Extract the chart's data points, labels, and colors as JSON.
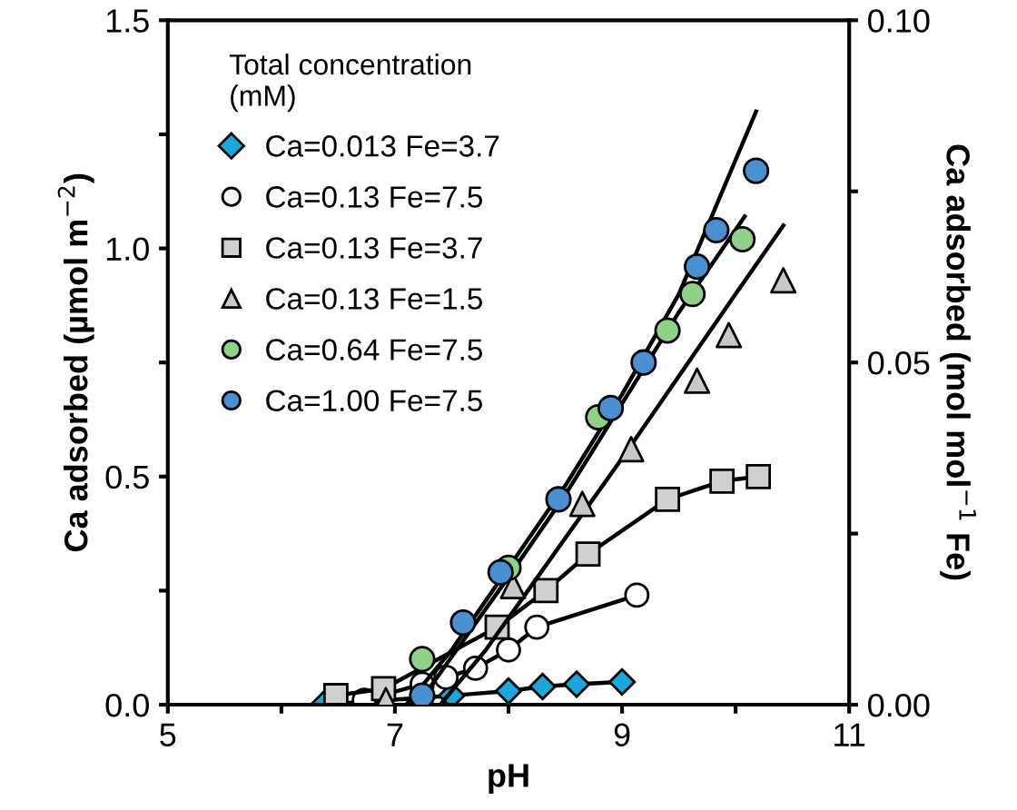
{
  "chart_data": {
    "type": "scatter",
    "xlabel": "pH",
    "ylabel": "Ca adsorbed (µmol m$^{−2}$)",
    "y2label": "Ca adsorbed (mol mol$^{−1}$ Fe)",
    "legend_title": "Total concentration\n(mM)",
    "legend": "top left",
    "grid": false,
    "xlim": [
      5,
      11
    ],
    "xticks": [
      5,
      {
        "value": 6,
        "label": null
      },
      7,
      {
        "value": 8,
        "label": null
      },
      9,
      {
        "value": 10,
        "label": null
      },
      11
    ],
    "ylim": [
      0,
      1.5
    ],
    "yticks": [
      {
        "value": 0,
        "label": "0.0"
      },
      {
        "value": 0.25,
        "label": null
      },
      {
        "value": 0.5,
        "label": "0.5"
      },
      {
        "value": 0.75,
        "label": null
      },
      {
        "value": 1.0,
        "label": "1.0"
      },
      {
        "value": 1.25,
        "label": null
      },
      {
        "value": 1.5,
        "label": "1.5"
      }
    ],
    "y2lim": [
      0,
      0.1
    ],
    "y2ticks": [
      {
        "value": 0,
        "label": "0.00"
      },
      {
        "value": 0.025,
        "label": null
      },
      {
        "value": 0.05,
        "label": "0.05"
      },
      {
        "value": 0.075,
        "label": null
      },
      {
        "value": 0.1,
        "label": "0.10"
      }
    ],
    "series": [
      {
        "name": "Ca=0.013 Fe=3.7",
        "type": "line",
        "marker": "diamond",
        "color": "#1aa7dc",
        "x": [
          6.37,
          7.5,
          8.0,
          8.3,
          8.6,
          9.0
        ],
        "values": [
          0.0,
          0.02,
          0.03,
          0.04,
          0.045,
          0.05
        ]
      },
      {
        "name": "Ca=0.13 Fe=7.5",
        "type": "line",
        "marker": "circle",
        "color": "#ffffff",
        "x": [
          6.73,
          7.24,
          7.45,
          7.71,
          8.0,
          8.25,
          9.13
        ],
        "values": [
          0.01,
          0.045,
          0.06,
          0.08,
          0.12,
          0.17,
          0.24
        ]
      },
      {
        "name": "Ca=0.13 Fe=3.7",
        "type": "line",
        "marker": "square",
        "color": "#d0d0d0",
        "x": [
          6.48,
          6.9,
          7.9,
          8.33,
          8.7,
          9.4,
          9.88,
          10.2
        ],
        "values": [
          0.02,
          0.035,
          0.17,
          0.25,
          0.33,
          0.45,
          0.49,
          0.5
        ]
      },
      {
        "name": "Ca=0.13 Fe=1.5",
        "marker": "triangle",
        "color": "#c8c8c8",
        "x": [
          6.92,
          8.04,
          8.65,
          9.08,
          9.66,
          9.94,
          10.42
        ],
        "values": [
          0.01,
          0.26,
          0.44,
          0.56,
          0.71,
          0.81,
          0.93
        ]
      },
      {
        "name": "Ca=0.64 Fe=7.5",
        "marker": "circle",
        "color": "#90d18a",
        "x": [
          7.24,
          8.0,
          8.79,
          9.4,
          9.62,
          10.06
        ],
        "values": [
          0.1,
          0.3,
          0.63,
          0.82,
          0.9,
          1.02
        ]
      },
      {
        "name": "Ca=1.00 Fe=7.5",
        "marker": "circle",
        "color": "#4a90d0",
        "x": [
          7.24,
          7.6,
          7.93,
          8.44,
          8.9,
          9.19,
          9.66,
          9.83,
          10.18
        ],
        "values": [
          0.02,
          0.18,
          0.29,
          0.45,
          0.65,
          0.75,
          0.96,
          1.04,
          1.17
        ]
      },
      {
        "type": "line",
        "marker": "none",
        "color": "#000000",
        "x": [
          7.1,
          7.5,
          8.0,
          8.5,
          9.0,
          9.5,
          10.18
        ],
        "values": [
          0,
          0.12,
          0.3,
          0.48,
          0.68,
          0.9,
          1.3
        ]
      },
      {
        "type": "line",
        "marker": "none",
        "color": "#000000",
        "x": [
          7.2,
          7.6,
          8.0,
          8.5,
          9.0,
          9.5,
          10.08
        ],
        "values": [
          0,
          0.14,
          0.28,
          0.46,
          0.66,
          0.86,
          1.07
        ]
      },
      {
        "type": "line",
        "marker": "none",
        "color": "#000000",
        "x": [
          7.4,
          7.8,
          8.2,
          8.6,
          9.0,
          9.5,
          10.0,
          10.42
        ],
        "values": [
          0,
          0.12,
          0.26,
          0.4,
          0.54,
          0.72,
          0.9,
          1.05
        ]
      }
    ]
  }
}
